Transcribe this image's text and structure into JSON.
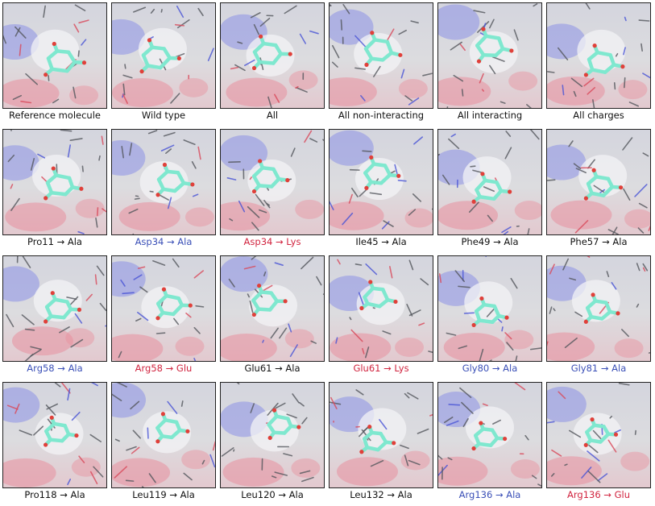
{
  "colors": {
    "blue_label": "#3a4fb7",
    "red_label": "#d1243f",
    "black_label": "#111111",
    "ligand_carbon": "#7fe8cf",
    "ligand_oxygen": "#e0403a",
    "surface_gray": "#d9dadc",
    "surface_blue": "#8d92e6",
    "surface_red": "#e8909e"
  },
  "panels": [
    {
      "label": "Reference molecule",
      "color": "black"
    },
    {
      "label": "Wild type",
      "color": "black"
    },
    {
      "label": "All",
      "color": "black"
    },
    {
      "label": "All non-interacting",
      "color": "black"
    },
    {
      "label": "All interacting",
      "color": "black"
    },
    {
      "label": "All charges",
      "color": "black"
    },
    {
      "label": "Pro11 → Ala",
      "color": "black"
    },
    {
      "label": "Asp34 → Ala",
      "color": "blue"
    },
    {
      "label": "Asp34 → Lys",
      "color": "red"
    },
    {
      "label": "Ile45 → Ala",
      "color": "black"
    },
    {
      "label": "Phe49 → Ala",
      "color": "black"
    },
    {
      "label": "Phe57 → Ala",
      "color": "black"
    },
    {
      "label": "Arg58 → Ala",
      "color": "blue"
    },
    {
      "label": "Arg58 → Glu",
      "color": "red"
    },
    {
      "label": "Glu61 → Ala",
      "color": "black"
    },
    {
      "label": "Glu61 → Lys",
      "color": "red"
    },
    {
      "label": "Gly80 → Ala",
      "color": "blue"
    },
    {
      "label": "Gly81 → Ala",
      "color": "blue"
    },
    {
      "label": "Pro118 → Ala",
      "color": "black"
    },
    {
      "label": "Leu119 → Ala",
      "color": "black"
    },
    {
      "label": "Leu120 → Ala",
      "color": "black"
    },
    {
      "label": "Leu132 → Ala",
      "color": "black"
    },
    {
      "label": "Arg136 → Ala",
      "color": "blue"
    },
    {
      "label": "Arg136 → Glu",
      "color": "red"
    }
  ]
}
